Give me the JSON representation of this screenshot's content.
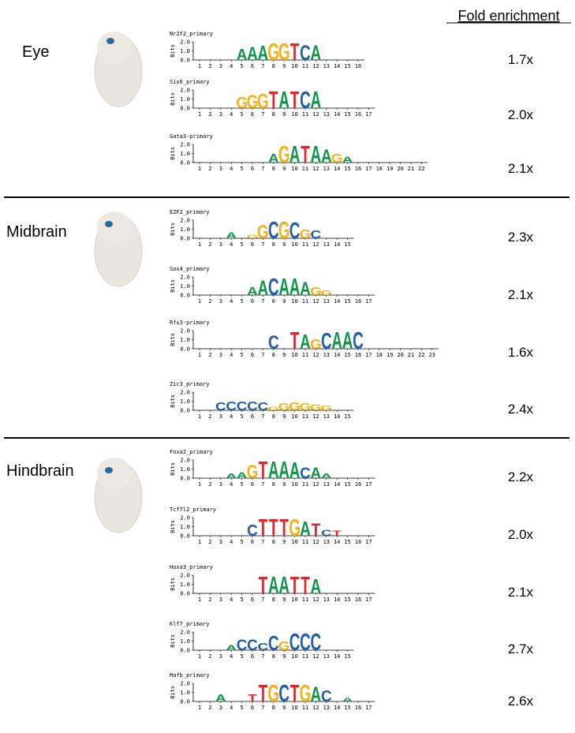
{
  "header": "Fold enrichment",
  "ylabel": "Bits",
  "ylim": [
    0,
    2
  ],
  "yticks": [
    {
      "value": 2,
      "label": "2.0"
    },
    {
      "value": 1,
      "label": "1.0"
    },
    {
      "value": 0,
      "label": "0.0"
    }
  ],
  "sections": [
    {
      "name": "Eye",
      "motifs": [
        {
          "name": "Nr2f2_primary",
          "fold": "1.7x",
          "positions": [
            1,
            2,
            3,
            4,
            5,
            6,
            7,
            8,
            9,
            10,
            11,
            12,
            13,
            14,
            15,
            16
          ],
          "logo": [
            {
              "letter": "A",
              "pos": 5,
              "bits": 1.3
            },
            {
              "letter": "A",
              "pos": 6,
              "bits": 1.5
            },
            {
              "letter": "A",
              "pos": 7,
              "bits": 1.6
            },
            {
              "letter": "G",
              "pos": 8,
              "bits": 1.9
            },
            {
              "letter": "G",
              "pos": 9,
              "bits": 1.9
            },
            {
              "letter": "T",
              "pos": 10,
              "bits": 1.9
            },
            {
              "letter": "C",
              "pos": 11,
              "bits": 1.7
            },
            {
              "letter": "A",
              "pos": 12,
              "bits": 1.7
            }
          ]
        },
        {
          "name": "Six6_primary",
          "fold": "2.0x",
          "positions": [
            1,
            2,
            3,
            4,
            5,
            6,
            7,
            8,
            9,
            10,
            11,
            12,
            13,
            14,
            15,
            16,
            17
          ],
          "logo": [
            {
              "letter": "G",
              "pos": 5,
              "bits": 1.3
            },
            {
              "letter": "G",
              "pos": 6,
              "bits": 1.5
            },
            {
              "letter": "G",
              "pos": 7,
              "bits": 1.6
            },
            {
              "letter": "T",
              "pos": 8,
              "bits": 1.9
            },
            {
              "letter": "A",
              "pos": 9,
              "bits": 1.9
            },
            {
              "letter": "T",
              "pos": 10,
              "bits": 1.9
            },
            {
              "letter": "C",
              "pos": 11,
              "bits": 1.9
            },
            {
              "letter": "A",
              "pos": 12,
              "bits": 1.9
            }
          ]
        },
        {
          "name": "Gata3-primary",
          "fold": "2.1x",
          "positions": [
            1,
            2,
            3,
            4,
            5,
            6,
            7,
            8,
            9,
            10,
            11,
            12,
            13,
            14,
            15,
            16,
            17,
            18,
            19,
            20,
            21,
            22
          ],
          "logo": [
            {
              "letter": "A",
              "pos": 8,
              "bits": 1.0
            },
            {
              "letter": "G",
              "pos": 9,
              "bits": 1.9
            },
            {
              "letter": "A",
              "pos": 10,
              "bits": 1.9
            },
            {
              "letter": "T",
              "pos": 11,
              "bits": 1.9
            },
            {
              "letter": "A",
              "pos": 12,
              "bits": 1.9
            },
            {
              "letter": "A",
              "pos": 13,
              "bits": 1.5
            },
            {
              "letter": "G",
              "pos": 14,
              "bits": 1.0
            },
            {
              "letter": "A",
              "pos": 15,
              "bits": 0.7
            }
          ]
        }
      ]
    },
    {
      "name": "Midbrain",
      "motifs": [
        {
          "name": "E2F2_primary",
          "fold": "2.3x",
          "positions": [
            1,
            2,
            3,
            4,
            5,
            6,
            7,
            8,
            9,
            10,
            11,
            12,
            13,
            14,
            15
          ],
          "logo": [
            {
              "letter": "A",
              "pos": 4,
              "bits": 0.7
            },
            {
              "letter": "G",
              "pos": 6,
              "bits": 0.4
            },
            {
              "letter": "G",
              "pos": 7,
              "bits": 1.5
            },
            {
              "letter": "C",
              "pos": 8,
              "bits": 1.9
            },
            {
              "letter": "G",
              "pos": 9,
              "bits": 1.9
            },
            {
              "letter": "C",
              "pos": 10,
              "bits": 1.8
            },
            {
              "letter": "G",
              "pos": 11,
              "bits": 1.0
            },
            {
              "letter": "C",
              "pos": 12,
              "bits": 0.9
            }
          ]
        },
        {
          "name": "Sox4_primary",
          "fold": "2.1x",
          "positions": [
            1,
            2,
            3,
            4,
            5,
            6,
            7,
            8,
            9,
            10,
            11,
            12,
            13,
            14,
            15,
            16,
            17
          ],
          "logo": [
            {
              "letter": "A",
              "pos": 6,
              "bits": 0.9
            },
            {
              "letter": "A",
              "pos": 7,
              "bits": 1.7
            },
            {
              "letter": "C",
              "pos": 8,
              "bits": 1.9
            },
            {
              "letter": "A",
              "pos": 9,
              "bits": 1.9
            },
            {
              "letter": "A",
              "pos": 10,
              "bits": 1.9
            },
            {
              "letter": "A",
              "pos": 11,
              "bits": 1.5
            },
            {
              "letter": "G",
              "pos": 12,
              "bits": 0.9
            },
            {
              "letter": "G",
              "pos": 13,
              "bits": 0.5
            }
          ]
        },
        {
          "name": "Rfx3-primary",
          "fold": "1.6x",
          "positions": [
            1,
            2,
            3,
            4,
            5,
            6,
            7,
            8,
            9,
            10,
            11,
            12,
            13,
            14,
            15,
            16,
            17,
            18,
            19,
            20,
            21,
            22,
            23
          ],
          "logo": [
            {
              "letter": "C",
              "pos": 8,
              "bits": 1.5
            },
            {
              "letter": "T",
              "pos": 10,
              "bits": 1.9
            },
            {
              "letter": "A",
              "pos": 11,
              "bits": 1.6
            },
            {
              "letter": "G",
              "pos": 12,
              "bits": 1.1
            },
            {
              "letter": "C",
              "pos": 13,
              "bits": 1.8
            },
            {
              "letter": "A",
              "pos": 14,
              "bits": 1.9
            },
            {
              "letter": "A",
              "pos": 15,
              "bits": 1.9
            },
            {
              "letter": "C",
              "pos": 16,
              "bits": 1.9
            }
          ]
        },
        {
          "name": "Zic3_primary",
          "fold": "2.4x",
          "positions": [
            1,
            2,
            3,
            4,
            5,
            6,
            7,
            8,
            9,
            10,
            11,
            12,
            13,
            14,
            15
          ],
          "logo": [
            {
              "letter": "C",
              "pos": 3,
              "bits": 0.9
            },
            {
              "letter": "C",
              "pos": 4,
              "bits": 1.0
            },
            {
              "letter": "C",
              "pos": 5,
              "bits": 1.0
            },
            {
              "letter": "C",
              "pos": 6,
              "bits": 1.0
            },
            {
              "letter": "C",
              "pos": 7,
              "bits": 0.9
            },
            {
              "letter": "G",
              "pos": 8,
              "bits": 0.4
            },
            {
              "letter": "G",
              "pos": 9,
              "bits": 0.8
            },
            {
              "letter": "G",
              "pos": 10,
              "bits": 0.9
            },
            {
              "letter": "G",
              "pos": 11,
              "bits": 0.8
            },
            {
              "letter": "G",
              "pos": 12,
              "bits": 0.7
            },
            {
              "letter": "G",
              "pos": 13,
              "bits": 0.5
            }
          ]
        }
      ]
    },
    {
      "name": "Hindbrain",
      "motifs": [
        {
          "name": "Foxa2_primary",
          "fold": "2.2x",
          "positions": [
            1,
            2,
            3,
            4,
            5,
            6,
            7,
            8,
            9,
            10,
            11,
            12,
            13,
            14,
            15,
            16,
            17
          ],
          "logo": [
            {
              "letter": "A",
              "pos": 4,
              "bits": 0.5
            },
            {
              "letter": "A",
              "pos": 5,
              "bits": 0.7
            },
            {
              "letter": "G",
              "pos": 6,
              "bits": 1.5
            },
            {
              "letter": "T",
              "pos": 7,
              "bits": 1.9
            },
            {
              "letter": "A",
              "pos": 8,
              "bits": 1.9
            },
            {
              "letter": "A",
              "pos": 9,
              "bits": 1.9
            },
            {
              "letter": "A",
              "pos": 10,
              "bits": 1.8
            },
            {
              "letter": "C",
              "pos": 11,
              "bits": 1.2
            },
            {
              "letter": "A",
              "pos": 12,
              "bits": 1.2
            },
            {
              "letter": "A",
              "pos": 13,
              "bits": 0.5
            }
          ]
        },
        {
          "name": "Tcf7l2_primary",
          "fold": "2.0x",
          "positions": [
            1,
            2,
            3,
            4,
            5,
            6,
            7,
            8,
            9,
            10,
            11,
            12,
            13,
            14,
            15,
            16,
            17
          ],
          "logo": [
            {
              "letter": "C",
              "pos": 6,
              "bits": 1.3
            },
            {
              "letter": "T",
              "pos": 7,
              "bits": 1.9
            },
            {
              "letter": "T",
              "pos": 8,
              "bits": 1.9
            },
            {
              "letter": "T",
              "pos": 9,
              "bits": 1.9
            },
            {
              "letter": "G",
              "pos": 10,
              "bits": 1.9
            },
            {
              "letter": "A",
              "pos": 11,
              "bits": 1.6
            },
            {
              "letter": "T",
              "pos": 12,
              "bits": 1.4
            },
            {
              "letter": "C",
              "pos": 13,
              "bits": 0.7
            },
            {
              "letter": "T",
              "pos": 14,
              "bits": 0.6
            }
          ]
        },
        {
          "name": "Hoxa3_primary",
          "fold": "2.1x",
          "positions": [
            1,
            2,
            3,
            4,
            5,
            6,
            7,
            8,
            9,
            10,
            11,
            12,
            13,
            14,
            15,
            16,
            17
          ],
          "logo": [
            {
              "letter": "T",
              "pos": 7,
              "bits": 1.9
            },
            {
              "letter": "A",
              "pos": 8,
              "bits": 1.9
            },
            {
              "letter": "A",
              "pos": 9,
              "bits": 1.9
            },
            {
              "letter": "T",
              "pos": 10,
              "bits": 1.9
            },
            {
              "letter": "T",
              "pos": 11,
              "bits": 1.9
            },
            {
              "letter": "A",
              "pos": 12,
              "bits": 1.6
            }
          ]
        },
        {
          "name": "Klf7_primary",
          "fold": "2.7x",
          "positions": [
            1,
            2,
            3,
            4,
            5,
            6,
            7,
            8,
            9,
            10,
            11,
            12,
            13,
            14,
            15
          ],
          "logo": [
            {
              "letter": "A",
              "pos": 4,
              "bits": 0.6
            },
            {
              "letter": "C",
              "pos": 5,
              "bits": 1.2
            },
            {
              "letter": "C",
              "pos": 6,
              "bits": 1.2
            },
            {
              "letter": "C",
              "pos": 7,
              "bits": 0.8
            },
            {
              "letter": "C",
              "pos": 8,
              "bits": 1.6
            },
            {
              "letter": "G",
              "pos": 9,
              "bits": 1.0
            },
            {
              "letter": "C",
              "pos": 10,
              "bits": 1.9
            },
            {
              "letter": "C",
              "pos": 11,
              "bits": 1.9
            },
            {
              "letter": "C",
              "pos": 12,
              "bits": 1.9
            }
          ]
        },
        {
          "name": "Mafb_primary",
          "fold": "2.6x",
          "positions": [
            1,
            2,
            3,
            4,
            5,
            6,
            7,
            8,
            9,
            10,
            11,
            12,
            13,
            14,
            15,
            16,
            17
          ],
          "logo": [
            {
              "letter": "A",
              "pos": 3,
              "bits": 0.8
            },
            {
              "letter": "T",
              "pos": 6,
              "bits": 0.8
            },
            {
              "letter": "T",
              "pos": 7,
              "bits": 1.9
            },
            {
              "letter": "G",
              "pos": 8,
              "bits": 1.9
            },
            {
              "letter": "C",
              "pos": 9,
              "bits": 1.9
            },
            {
              "letter": "T",
              "pos": 10,
              "bits": 1.9
            },
            {
              "letter": "G",
              "pos": 11,
              "bits": 1.9
            },
            {
              "letter": "A",
              "pos": 12,
              "bits": 1.7
            },
            {
              "letter": "C",
              "pos": 13,
              "bits": 1.3
            },
            {
              "letter": "A",
              "pos": 15,
              "bits": 0.4
            }
          ]
        }
      ]
    }
  ]
}
